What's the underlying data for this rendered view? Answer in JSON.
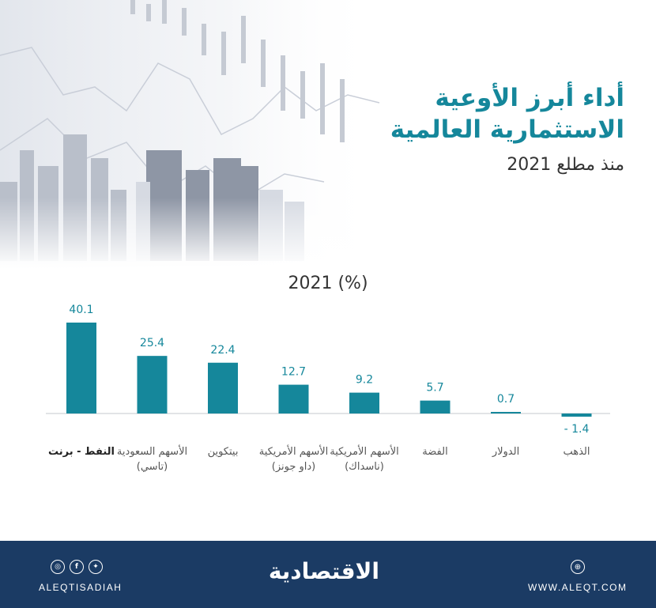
{
  "header": {
    "title_line1": "أداء أبرز الأوعية",
    "title_line2": "الاستثمارية العالمية",
    "subtitle": "منذ مطلع 2021"
  },
  "colors": {
    "accent": "#15879b",
    "footer": "#1b3b64"
  },
  "chart_data": {
    "type": "bar",
    "title": "2021 (%)",
    "categories": [
      [
        "النفط - برنت"
      ],
      [
        "الأسهم السعودية",
        "(تاسي)"
      ],
      [
        "بيتكوين"
      ],
      [
        "الأسهم الأمريكية",
        "(داو جونز)"
      ],
      [
        "الأسهم الأمريكية",
        "(ناسداك)"
      ],
      [
        "الفضة"
      ],
      [
        "الدولار"
      ],
      [
        "الذهب"
      ]
    ],
    "values": [
      40.1,
      25.4,
      22.4,
      12.7,
      9.2,
      5.7,
      0.7,
      -1.4
    ],
    "value_labels": [
      "40.1",
      "25.4",
      "22.4",
      "12.7",
      "9.2",
      "5.7",
      "0.7",
      "- 1.4"
    ],
    "bold_category_index": 0,
    "color": "#15879b"
  },
  "footer": {
    "handle": "ALEQTISADIAH",
    "logo": "الاقتصادية",
    "website": "WWW.ALEQT.COM",
    "social_icons": [
      "instagram-icon",
      "facebook-icon",
      "twitter-icon"
    ],
    "web_icon": "globe-icon"
  }
}
